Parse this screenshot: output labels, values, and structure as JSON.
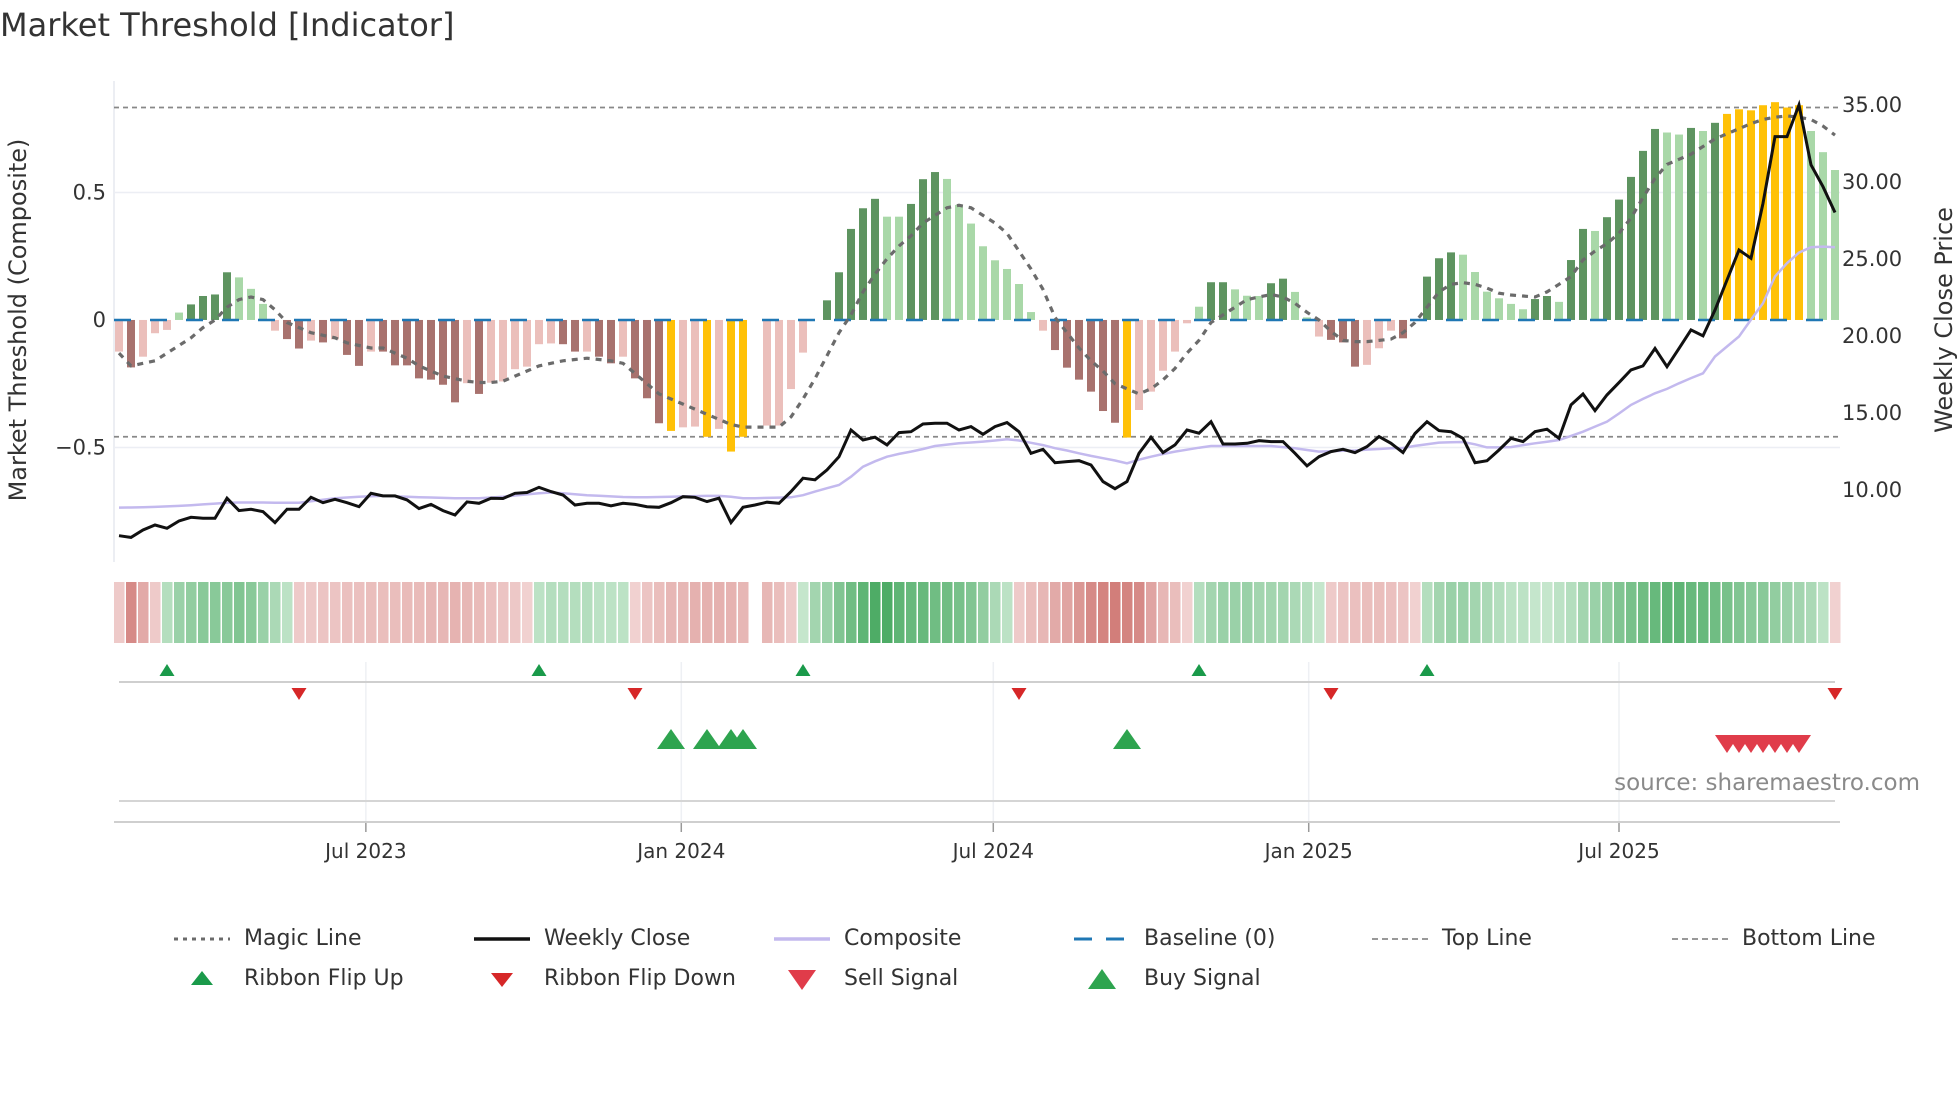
{
  "chart_data": {
    "type": "bar",
    "title": "Market Threshold [Indicator]",
    "source": "source: sharemaestro.com",
    "x_start": "2023-02-07",
    "x_interval_days": 7,
    "xticks": [
      {
        "date": "2023-07-01",
        "label": "Jul 2023"
      },
      {
        "date": "2024-01-01",
        "label": "Jan 2024"
      },
      {
        "date": "2024-07-01",
        "label": "Jul 2024"
      },
      {
        "date": "2025-01-01",
        "label": "Jan 2025"
      },
      {
        "date": "2025-07-01",
        "label": "Jul 2025"
      }
    ],
    "left_axis": {
      "label": "Market Threshold (Composite)",
      "ylim": [
        -0.949,
        0.937
      ],
      "ticks": [
        {
          "value": 0.5,
          "label": "0.5"
        },
        {
          "value": 0,
          "label": "0"
        },
        {
          "value": -0.5,
          "label": "−0.5"
        }
      ]
    },
    "right_axis": {
      "label": "Weekly Close Price",
      "ylim": [
        5.26,
        36.49
      ],
      "ticks": [
        {
          "value": 35,
          "label": "35.00"
        },
        {
          "value": 30,
          "label": "30.00"
        },
        {
          "value": 25,
          "label": "25.00"
        },
        {
          "value": 20,
          "label": "20.00"
        },
        {
          "value": 15,
          "label": "15.00"
        },
        {
          "value": 10,
          "label": "10.00"
        }
      ]
    },
    "top_line": 0.833,
    "bottom_line": -0.458,
    "baseline": 0,
    "bar_palette": {
      "G": "#5e9460",
      "g": "#a9d8a8",
      "R": "#a8726e",
      "r": "#ebbfbb",
      "Y": "#ffc107"
    },
    "bars": {
      "values": [
        -0.124,
        -0.186,
        -0.144,
        -0.052,
        -0.039,
        0.029,
        0.061,
        0.094,
        0.1,
        0.187,
        0.167,
        0.122,
        0.063,
        -0.042,
        -0.075,
        -0.112,
        -0.081,
        -0.088,
        -0.076,
        -0.137,
        -0.18,
        -0.124,
        -0.124,
        -0.178,
        -0.178,
        -0.229,
        -0.234,
        -0.254,
        -0.323,
        -0.248,
        -0.29,
        -0.246,
        -0.241,
        -0.193,
        -0.183,
        -0.095,
        -0.092,
        -0.095,
        -0.124,
        -0.124,
        -0.144,
        -0.17,
        -0.144,
        -0.229,
        -0.307,
        -0.405,
        -0.435,
        -0.421,
        -0.418,
        -0.458,
        -0.427,
        -0.516,
        -0.458,
        0,
        -0.414,
        -0.414,
        -0.271,
        -0.128,
        0,
        0.077,
        0.187,
        0.357,
        0.438,
        0.475,
        0.405,
        0.405,
        0.455,
        0.552,
        0.58,
        0.553,
        0.451,
        0.378,
        0.289,
        0.234,
        0.2,
        0.141,
        0.031,
        -0.042,
        -0.118,
        -0.187,
        -0.234,
        -0.281,
        -0.357,
        -0.403,
        -0.461,
        -0.353,
        -0.281,
        -0.199,
        -0.124,
        -0.013,
        0.052,
        0.148,
        0.148,
        0.12,
        0.095,
        0.094,
        0.144,
        0.162,
        0.11,
        0.01,
        -0.065,
        -0.078,
        -0.088,
        -0.183,
        -0.176,
        -0.111,
        -0.042,
        -0.072,
        0,
        0.17,
        0.242,
        0.265,
        0.256,
        0.188,
        0.111,
        0.085,
        0.063,
        0.042,
        0.082,
        0.094,
        0.071,
        0.235,
        0.357,
        0.349,
        0.403,
        0.472,
        0.561,
        0.663,
        0.749,
        0.735,
        0.727,
        0.753,
        0.741,
        0.773,
        0.808,
        0.826,
        0.822,
        0.842,
        0.854,
        0.833,
        0.842,
        0.741,
        0.658,
        0.588
      ],
      "colors": "rRrrrgGGGGgggrRRrRrRRrRRRRRRRrRrrrrrrRRrRRrRRRYrrYrYY-rrrr-GGGGGggGGGggggggggrRRRRRRYrrrrrgGGgggGGggrRRRrrrR-GGGggggggGGgGGgGGGGGggGgGYYYYYYYggg"
    },
    "magic_line": [
      -0.13,
      -0.18,
      -0.17,
      -0.16,
      -0.13,
      -0.1,
      -0.07,
      -0.03,
      0.0,
      0.05,
      0.08,
      0.09,
      0.08,
      0.04,
      -0.01,
      -0.03,
      -0.05,
      -0.06,
      -0.07,
      -0.09,
      -0.1,
      -0.11,
      -0.11,
      -0.13,
      -0.15,
      -0.18,
      -0.2,
      -0.22,
      -0.23,
      -0.24,
      -0.245,
      -0.245,
      -0.24,
      -0.22,
      -0.2,
      -0.18,
      -0.17,
      -0.16,
      -0.155,
      -0.15,
      -0.155,
      -0.16,
      -0.17,
      -0.21,
      -0.25,
      -0.29,
      -0.31,
      -0.33,
      -0.35,
      -0.37,
      -0.39,
      -0.41,
      -0.42,
      -0.42,
      -0.42,
      -0.42,
      -0.38,
      -0.31,
      -0.23,
      -0.14,
      -0.05,
      0.02,
      0.11,
      0.18,
      0.24,
      0.29,
      0.33,
      0.38,
      0.41,
      0.44,
      0.45,
      0.44,
      0.41,
      0.38,
      0.34,
      0.27,
      0.2,
      0.12,
      0.01,
      -0.05,
      -0.11,
      -0.16,
      -0.2,
      -0.25,
      -0.27,
      -0.29,
      -0.27,
      -0.235,
      -0.19,
      -0.13,
      -0.08,
      -0.01,
      0.02,
      0.05,
      0.08,
      0.09,
      0.1,
      0.09,
      0.065,
      0.03,
      0.0,
      -0.045,
      -0.08,
      -0.085,
      -0.085,
      -0.08,
      -0.075,
      -0.05,
      -0.01,
      0.05,
      0.11,
      0.14,
      0.146,
      0.14,
      0.125,
      0.105,
      0.098,
      0.094,
      0.09,
      0.11,
      0.14,
      0.17,
      0.235,
      0.27,
      0.3,
      0.34,
      0.4,
      0.48,
      0.555,
      0.61,
      0.63,
      0.65,
      0.68,
      0.71,
      0.73,
      0.75,
      0.77,
      0.786,
      0.795,
      0.8,
      0.795,
      0.786,
      0.76,
      0.725
    ],
    "weekly_close": [
      6.97,
      6.86,
      7.34,
      7.66,
      7.45,
      7.92,
      8.16,
      8.1,
      8.1,
      9.4,
      8.6,
      8.68,
      8.53,
      7.82,
      8.68,
      8.68,
      9.46,
      9.11,
      9.33,
      9.11,
      8.85,
      9.72,
      9.55,
      9.55,
      9.29,
      8.73,
      9.0,
      8.6,
      8.31,
      9.16,
      9.07,
      9.4,
      9.38,
      9.72,
      9.77,
      10.11,
      9.83,
      9.61,
      8.96,
      9.07,
      9.07,
      8.9,
      9.07,
      9.0,
      8.85,
      8.81,
      9.11,
      9.5,
      9.46,
      9.18,
      9.4,
      7.82,
      8.81,
      8.96,
      9.14,
      9.07,
      9.83,
      10.7,
      10.6,
      11.24,
      12.1,
      13.83,
      13.18,
      13.36,
      12.86,
      13.66,
      13.72,
      14.22,
      14.27,
      14.27,
      13.83,
      14.05,
      13.55,
      14.05,
      14.31,
      13.72,
      12.32,
      12.58,
      11.71,
      11.78,
      11.84,
      11.56,
      10.48,
      10.02,
      10.48,
      12.32,
      13.36,
      12.36,
      12.86,
      13.83,
      13.62,
      14.37,
      12.92,
      12.92,
      12.97,
      13.14,
      13.08,
      13.08,
      12.32,
      11.5,
      12.1,
      12.43,
      12.58,
      12.36,
      12.75,
      13.4,
      12.97,
      12.36,
      13.6,
      14.37,
      13.79,
      13.72,
      13.29,
      11.71,
      11.84,
      12.53,
      13.29,
      13.08,
      13.72,
      13.88,
      13.29,
      15.46,
      16.17,
      15.09,
      16.11,
      16.91,
      17.73,
      17.99,
      19.13,
      17.94,
      19.13,
      20.33,
      19.94,
      21.62,
      23.57,
      25.52,
      24.98,
      28.55,
      32.88,
      32.88,
      34.94,
      31.04,
      29.63,
      27.95
    ],
    "composite": [
      8.79,
      8.8,
      8.82,
      8.84,
      8.87,
      8.9,
      8.95,
      9.0,
      9.05,
      9.11,
      9.12,
      9.12,
      9.12,
      9.11,
      9.11,
      9.11,
      9.2,
      9.3,
      9.4,
      9.45,
      9.5,
      9.53,
      9.55,
      9.53,
      9.5,
      9.47,
      9.45,
      9.42,
      9.4,
      9.4,
      9.4,
      9.45,
      9.5,
      9.58,
      9.65,
      9.72,
      9.77,
      9.72,
      9.66,
      9.6,
      9.56,
      9.52,
      9.48,
      9.47,
      9.46,
      9.48,
      9.5,
      9.52,
      9.54,
      9.55,
      9.55,
      9.5,
      9.4,
      9.4,
      9.42,
      9.44,
      9.46,
      9.6,
      9.83,
      10.05,
      10.26,
      10.8,
      11.45,
      11.8,
      12.1,
      12.28,
      12.43,
      12.6,
      12.79,
      12.88,
      12.97,
      13.02,
      13.08,
      13.15,
      13.23,
      13.15,
      13.0,
      12.85,
      12.65,
      12.5,
      12.32,
      12.15,
      12.0,
      11.85,
      11.67,
      11.9,
      12.1,
      12.27,
      12.43,
      12.55,
      12.68,
      12.79,
      12.79,
      12.79,
      12.79,
      12.79,
      12.79,
      12.72,
      12.64,
      12.53,
      12.43,
      12.45,
      12.48,
      12.5,
      12.56,
      12.6,
      12.64,
      12.66,
      12.8,
      12.9,
      13.01,
      13.03,
      13.05,
      12.9,
      12.7,
      12.7,
      12.72,
      12.85,
      12.97,
      13.07,
      13.18,
      13.45,
      13.72,
      14.05,
      14.37,
      14.9,
      15.46,
      15.85,
      16.21,
      16.5,
      16.86,
      17.2,
      17.51,
      18.6,
      19.25,
      19.9,
      21.0,
      22.06,
      23.8,
      24.66,
      25.35,
      25.7,
      25.74,
      25.7
    ],
    "ribbon": [
      -0.2,
      -0.7,
      -0.45,
      -0.2,
      0.25,
      0.4,
      0.45,
      0.5,
      0.5,
      0.5,
      0.55,
      0.5,
      0.4,
      0.3,
      0.2,
      -0.2,
      -0.22,
      -0.25,
      -0.25,
      -0.28,
      -0.28,
      -0.3,
      -0.3,
      -0.3,
      -0.32,
      -0.32,
      -0.35,
      -0.35,
      -0.38,
      -0.35,
      -0.32,
      -0.28,
      -0.25,
      -0.22,
      -0.15,
      0.2,
      0.25,
      0.25,
      0.25,
      0.25,
      0.2,
      0.2,
      0.2,
      -0.15,
      -0.25,
      -0.3,
      -0.35,
      -0.35,
      -0.4,
      -0.4,
      -0.4,
      -0.38,
      -0.35,
      null,
      -0.35,
      -0.3,
      -0.2,
      0.15,
      0.35,
      0.4,
      0.55,
      0.65,
      0.75,
      0.85,
      0.85,
      0.75,
      0.7,
      0.7,
      0.65,
      0.65,
      0.6,
      0.55,
      0.45,
      0.3,
      0.2,
      -0.2,
      -0.3,
      -0.35,
      -0.45,
      -0.5,
      -0.6,
      -0.7,
      -0.75,
      -0.8,
      -0.75,
      -0.7,
      -0.5,
      -0.35,
      -0.3,
      -0.15,
      0.25,
      0.35,
      0.4,
      0.4,
      0.4,
      0.35,
      0.35,
      0.35,
      0.3,
      0.25,
      0.15,
      -0.2,
      -0.25,
      -0.28,
      -0.3,
      -0.3,
      -0.28,
      -0.25,
      -0.15,
      0.25,
      0.35,
      0.4,
      0.4,
      0.35,
      0.3,
      0.25,
      0.2,
      0.2,
      0.15,
      0.15,
      0.2,
      0.25,
      0.35,
      0.4,
      0.45,
      0.55,
      0.6,
      0.65,
      0.7,
      0.75,
      0.75,
      0.7,
      0.7,
      0.65,
      0.6,
      0.55,
      0.5,
      0.5,
      0.45,
      0.4,
      0.35,
      0.3,
      0.2,
      -0.15
    ],
    "signals": {
      "ribbon_flip_up": [
        4,
        35,
        57,
        90,
        109
      ],
      "ribbon_flip_down": [
        15,
        43,
        75,
        101,
        143
      ],
      "buy": [
        46,
        49,
        51,
        52,
        84
      ],
      "sell": [
        134,
        135,
        136,
        137,
        138,
        139,
        140
      ]
    },
    "colors": {
      "magic": "#6b6b6b",
      "close": "#111111",
      "composite": "#c3b9ee",
      "baseline": "#1f77b4",
      "ref_line": "#888888",
      "flip_up": "#1a9a4a",
      "flip_down": "#d62728",
      "buy": "#2ea44f",
      "sell": "#e03c4a"
    },
    "legend": [
      {
        "label": "Magic Line",
        "kind": "dotted"
      },
      {
        "label": "Weekly Close",
        "kind": "solid"
      },
      {
        "label": "Composite",
        "kind": "lavender"
      },
      {
        "label": "Baseline (0)",
        "kind": "dashed-blue"
      },
      {
        "label": "Top Line",
        "kind": "dashed-gray"
      },
      {
        "label": "Bottom Line",
        "kind": "dashed-gray"
      },
      {
        "label": "Ribbon Flip Up",
        "kind": "tri-up-small"
      },
      {
        "label": "Ribbon Flip Down",
        "kind": "tri-down-small"
      },
      {
        "label": "Sell Signal",
        "kind": "tri-down-big"
      },
      {
        "label": "Buy Signal",
        "kind": "tri-up-big"
      }
    ]
  }
}
